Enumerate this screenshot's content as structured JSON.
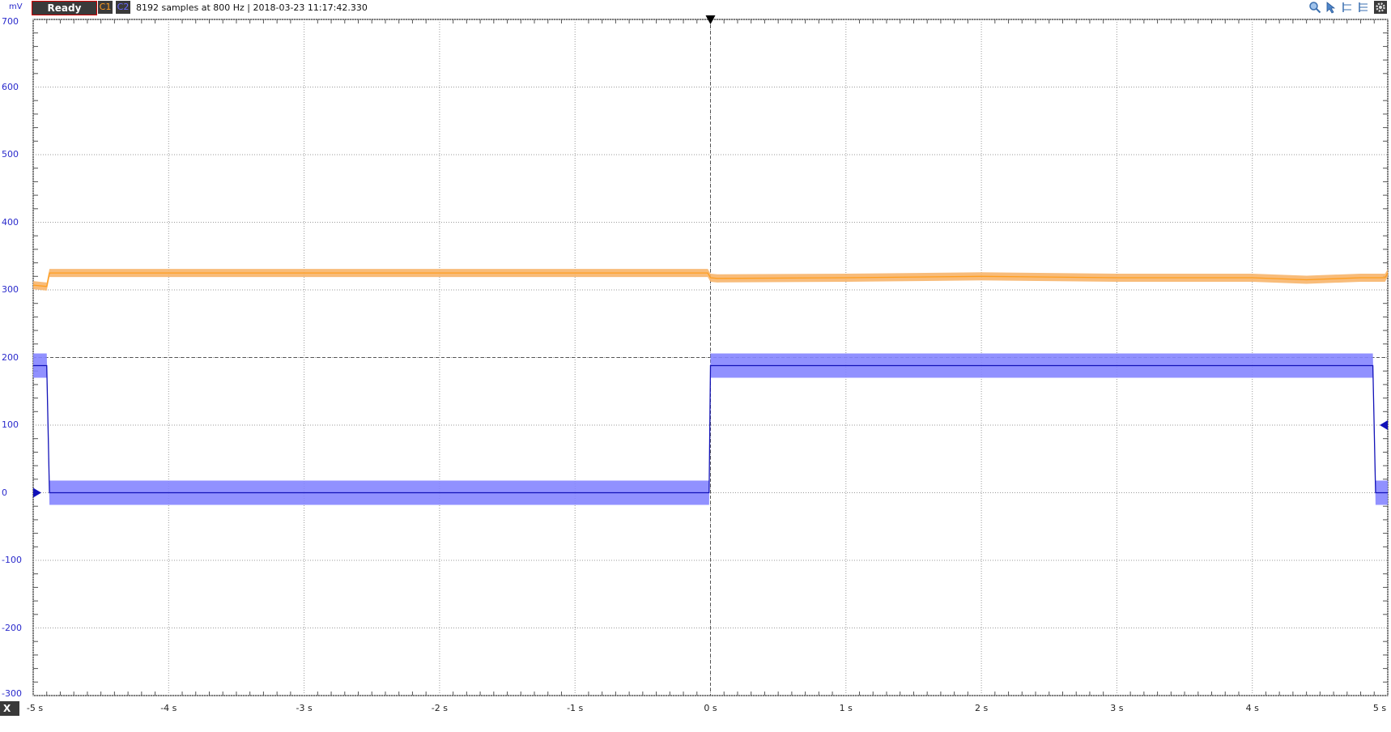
{
  "toolbar": {
    "unit_label": "mV",
    "status_label": "Ready",
    "channel1_label": "C1",
    "channel2_label": "C2",
    "info_text": "8192 samples at 800 Hz | 2018-03-23 11:17:42.330",
    "tools": [
      "zoom-icon",
      "cursor-icon",
      "cursor-left-icon",
      "cursor-right-icon",
      "settings-icon"
    ]
  },
  "x_button_label": "X",
  "colors": {
    "channel1": "#ff9e1f",
    "channel1_band": "#f7b56b",
    "channel2": "#1212b8",
    "channel2_band": "#8585ff",
    "axis_text": "#2a2acc",
    "grid": "#9a9a9a"
  },
  "chart_data": {
    "type": "line",
    "ylabel": "mV",
    "xlabel": "",
    "xlim": [
      -5,
      5
    ],
    "ylim": [
      -300,
      700
    ],
    "y_ticks": [
      "700",
      "600",
      "500",
      "400",
      "300",
      "200",
      "100",
      "0",
      "-100",
      "-200",
      "-300"
    ],
    "x_ticks": [
      "-5 s",
      "-4 s",
      "-3 s",
      "-2 s",
      "-1 s",
      "0 s",
      "1 s",
      "2 s",
      "3 s",
      "4 s",
      "5 s"
    ],
    "grid": true,
    "trigger_time": 0,
    "trigger_level": 200,
    "series": [
      {
        "name": "C1",
        "x": [
          -5,
          -4.9,
          -4.88,
          -4.5,
          -3,
          -2,
          -1,
          -0.02,
          0,
          0.05,
          1,
          2,
          3,
          4,
          4.4,
          4.8,
          4.98,
          5
        ],
        "y": [
          307,
          305,
          325,
          325,
          325,
          325,
          325,
          325,
          318,
          317,
          318,
          320,
          318,
          318,
          315,
          318,
          318,
          325
        ],
        "band": 6
      },
      {
        "name": "C2",
        "x": [
          -5,
          -4.9,
          -4.88,
          -3,
          -1,
          -0.01,
          0,
          0.01,
          0.05,
          1,
          2,
          3,
          4,
          4.89,
          4.91,
          5
        ],
        "y": [
          188,
          188,
          0,
          0,
          0,
          0,
          188,
          188,
          188,
          188,
          188,
          188,
          188,
          188,
          0,
          0
        ],
        "band": 18
      }
    ]
  }
}
